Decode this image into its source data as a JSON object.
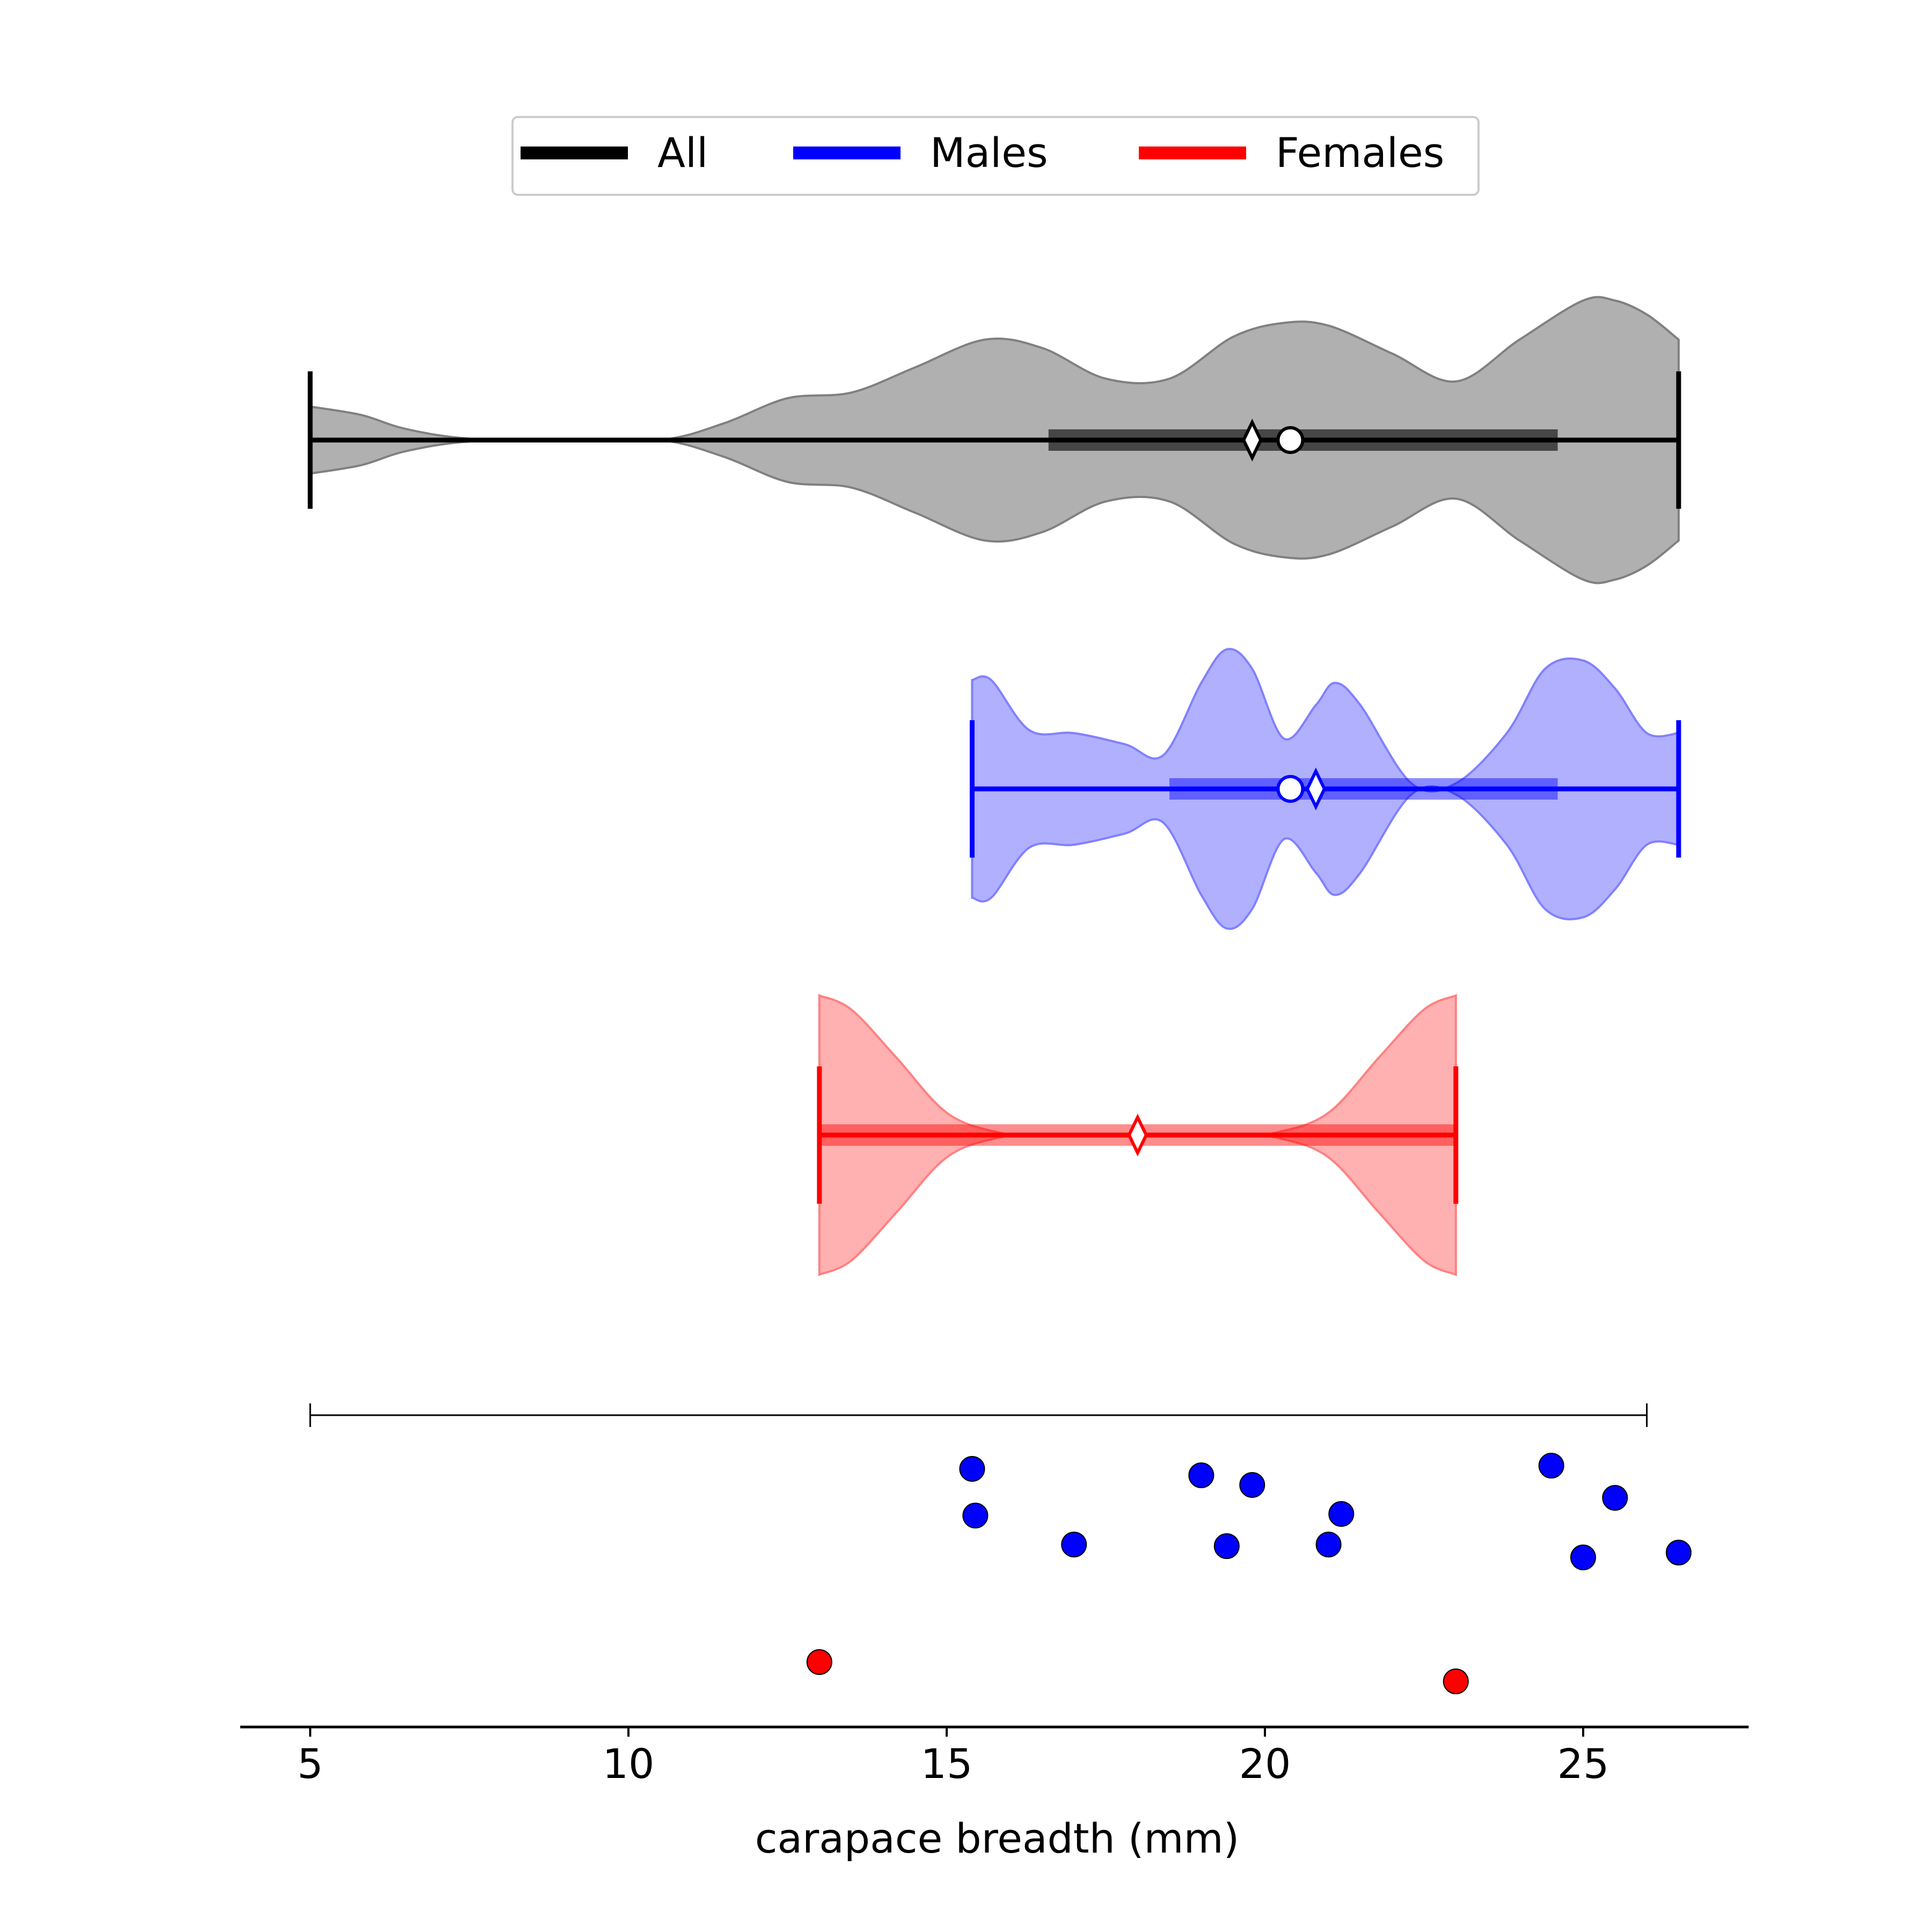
{
  "chart_data": {
    "type": "violin",
    "xlabel": "carapace breadth (mm)",
    "xlim": [
      3.9,
      27.6
    ],
    "xticks": [
      5,
      10,
      15,
      20,
      25
    ],
    "legend": {
      "placement": "top-center",
      "entries": [
        {
          "label": "All",
          "color": "#000000"
        },
        {
          "label": "Males",
          "color": "#0000ff"
        },
        {
          "label": "Females",
          "color": "#ff0000"
        }
      ]
    },
    "violins": [
      {
        "group": "All",
        "color": "#000000",
        "fill": "#b0b0b0",
        "edge": "#808080",
        "min": 5.0,
        "max": 26.5,
        "q1": 16.6,
        "q3": 24.6,
        "median": 20.4,
        "mean": 19.8,
        "density": [
          [
            5.0,
            0.12
          ],
          [
            5.8,
            0.09
          ],
          [
            6.5,
            0.04
          ],
          [
            7.5,
            0.005
          ],
          [
            9,
            0.0
          ],
          [
            10.5,
            0.0
          ],
          [
            11.5,
            0.06
          ],
          [
            12.5,
            0.15
          ],
          [
            13.5,
            0.17
          ],
          [
            14.5,
            0.26
          ],
          [
            15.6,
            0.36
          ],
          [
            16.5,
            0.33
          ],
          [
            17.5,
            0.22
          ],
          [
            18.5,
            0.22
          ],
          [
            19.5,
            0.37
          ],
          [
            20.3,
            0.42
          ],
          [
            21.0,
            0.41
          ],
          [
            22.0,
            0.31
          ],
          [
            23.0,
            0.21
          ],
          [
            24.0,
            0.36
          ],
          [
            25.0,
            0.5
          ],
          [
            25.5,
            0.5
          ],
          [
            26.0,
            0.45
          ],
          [
            26.5,
            0.36
          ]
        ]
      },
      {
        "group": "Males",
        "color": "#0000ff",
        "fill": "#b0b0ff",
        "edge": "#8080ff",
        "min": 15.4,
        "max": 26.5,
        "q1": 18.5,
        "q3": 24.6,
        "median": 20.4,
        "mean": 20.8,
        "density": [
          [
            15.4,
            0.39
          ],
          [
            15.7,
            0.39
          ],
          [
            16.3,
            0.21
          ],
          [
            17.0,
            0.2
          ],
          [
            17.8,
            0.16
          ],
          [
            18.4,
            0.12
          ],
          [
            19.0,
            0.38
          ],
          [
            19.4,
            0.5
          ],
          [
            19.8,
            0.43
          ],
          [
            20.3,
            0.18
          ],
          [
            20.8,
            0.3
          ],
          [
            21.1,
            0.38
          ],
          [
            21.5,
            0.3
          ],
          [
            22.3,
            0.02
          ],
          [
            23.0,
            0.02
          ],
          [
            23.8,
            0.2
          ],
          [
            24.4,
            0.43
          ],
          [
            25.0,
            0.46
          ],
          [
            25.5,
            0.36
          ],
          [
            26.0,
            0.2
          ],
          [
            26.5,
            0.2
          ]
        ]
      },
      {
        "group": "Females",
        "color": "#ff0000",
        "fill": "#ffb0b0",
        "edge": "#ff8080",
        "min": 13.0,
        "max": 23.0,
        "q1": 13.0,
        "q3": 23.0,
        "median": 18.0,
        "mean": 18.0,
        "density": [
          [
            13.0,
            0.5
          ],
          [
            13.5,
            0.45
          ],
          [
            14.2,
            0.28
          ],
          [
            15.0,
            0.08
          ],
          [
            15.8,
            0.01
          ],
          [
            16.5,
            0.0
          ],
          [
            18.0,
            0.0
          ],
          [
            19.5,
            0.0
          ],
          [
            20.2,
            0.01
          ],
          [
            21.0,
            0.08
          ],
          [
            21.8,
            0.28
          ],
          [
            22.5,
            0.45
          ],
          [
            23.0,
            0.5
          ]
        ]
      }
    ],
    "range_bar": {
      "min": 5.0,
      "max": 26.0
    },
    "points": [
      {
        "group": "Males",
        "color": "#0000ff",
        "x": 15.4,
        "jitter": 0.12
      },
      {
        "group": "Males",
        "color": "#0000ff",
        "x": 15.45,
        "jitter": 0.265
      },
      {
        "group": "Males",
        "color": "#0000ff",
        "x": 17.0,
        "jitter": 0.355
      },
      {
        "group": "Males",
        "color": "#0000ff",
        "x": 19.0,
        "jitter": 0.14
      },
      {
        "group": "Males",
        "color": "#0000ff",
        "x": 19.4,
        "jitter": 0.36
      },
      {
        "group": "Males",
        "color": "#0000ff",
        "x": 19.8,
        "jitter": 0.17
      },
      {
        "group": "Males",
        "color": "#0000ff",
        "x": 21.0,
        "jitter": 0.355
      },
      {
        "group": "Males",
        "color": "#0000ff",
        "x": 21.2,
        "jitter": 0.26
      },
      {
        "group": "Males",
        "color": "#0000ff",
        "x": 24.5,
        "jitter": 0.11
      },
      {
        "group": "Males",
        "color": "#0000ff",
        "x": 25.0,
        "jitter": 0.395
      },
      {
        "group": "Males",
        "color": "#0000ff",
        "x": 25.5,
        "jitter": 0.21
      },
      {
        "group": "Males",
        "color": "#0000ff",
        "x": 26.5,
        "jitter": 0.38
      },
      {
        "group": "Females",
        "color": "#ff0000",
        "x": 13.0,
        "jitter": 0.72
      },
      {
        "group": "Females",
        "color": "#ff0000",
        "x": 23.0,
        "jitter": 0.78
      }
    ]
  }
}
